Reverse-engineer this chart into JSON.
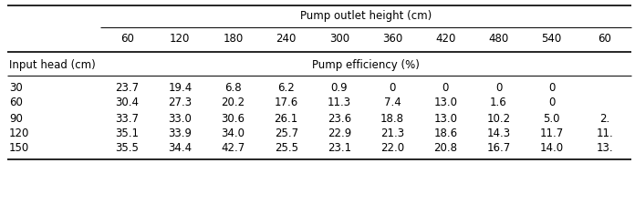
{
  "col_header_group": "Pump outlet height (cm)",
  "col_headers": [
    "60",
    "120",
    "180",
    "240",
    "300",
    "360",
    "420",
    "480",
    "540",
    "60"
  ],
  "row_header_label": "Input head (cm)",
  "row_subheader": "Pump efficiency (%)",
  "rows": [
    {
      "head": "30",
      "values": [
        "23.7",
        "19.4",
        "6.8",
        "6.2",
        "0.9",
        "0",
        "0",
        "0",
        "0",
        ""
      ]
    },
    {
      "head": "60",
      "values": [
        "30.4",
        "27.3",
        "20.2",
        "17.6",
        "11.3",
        "7.4",
        "13.0",
        "1.6",
        "0",
        ""
      ]
    },
    {
      "head": "90",
      "values": [
        "33.7",
        "33.0",
        "30.6",
        "26.1",
        "23.6",
        "18.8",
        "13.0",
        "10.2",
        "5.0",
        "2."
      ]
    },
    {
      "head": "120",
      "values": [
        "35.1",
        "33.9",
        "34.0",
        "25.7",
        "22.9",
        "21.3",
        "18.6",
        "14.3",
        "11.7",
        "11."
      ]
    },
    {
      "head": "150",
      "values": [
        "35.5",
        "34.4",
        "42.7",
        "25.5",
        "23.1",
        "22.0",
        "20.8",
        "16.7",
        "14.0",
        "13."
      ]
    }
  ],
  "bg_color": "#ffffff",
  "line_color": "#000000",
  "font_size": 8.5,
  "figwidth": 6.96,
  "figheight": 2.24,
  "dpi": 100
}
